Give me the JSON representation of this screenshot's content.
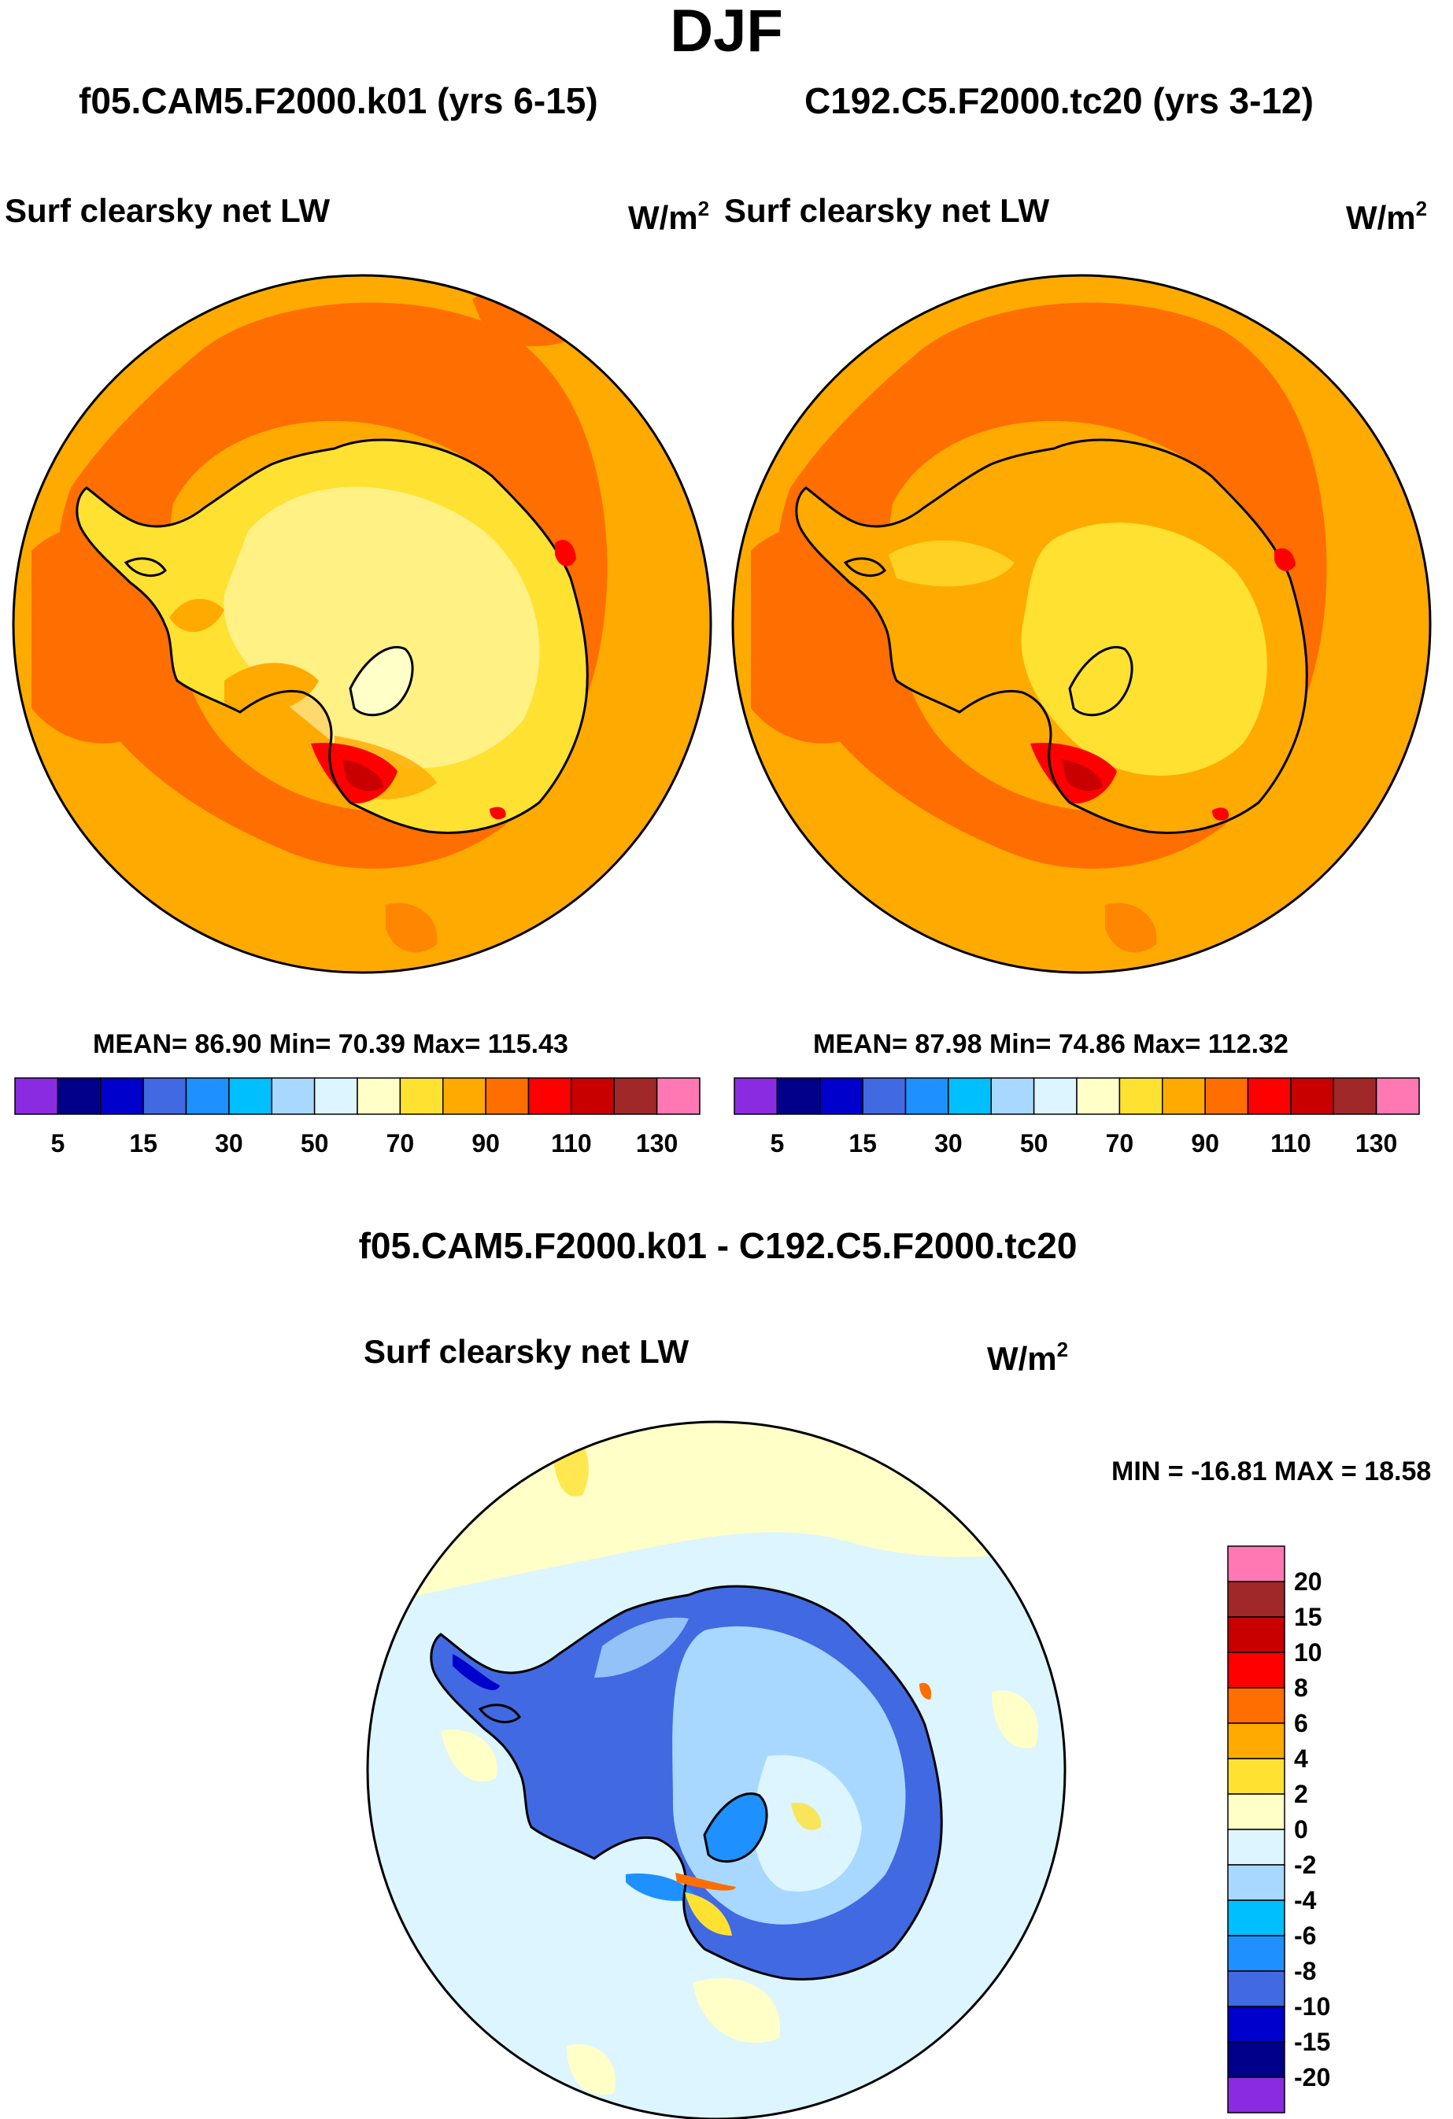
{
  "page_title": "DJF",
  "colors": {
    "palette": [
      "#8a2be2",
      "#00008b",
      "#0000cd",
      "#4169e1",
      "#1e90ff",
      "#00bfff",
      "#a8d8ff",
      "#dcf5ff",
      "#ffffc8",
      "#ffe132",
      "#ffaa00",
      "#ff6e00",
      "#ff0000",
      "#c80000",
      "#a02828",
      "#ff78b4"
    ],
    "land_outline": "#000000",
    "ocean_dominant_left": "#ffaa00",
    "ocean_dominant_diff": "#dcf5ff"
  },
  "panels": [
    {
      "case_title": "f05.CAM5.F2000.k01 (yrs 6-15)",
      "variable": "Surf clearsky net LW",
      "units": "W/m",
      "units_sup": "2",
      "stats": "MEAN=  86.90  Min=  70.39  Max= 115.43"
    },
    {
      "case_title": "C192.C5.F2000.tc20 (yrs 3-12)",
      "variable": "Surf clearsky net LW",
      "units": "W/m",
      "units_sup": "2",
      "stats": "MEAN=  87.98  Min=  74.86  Max= 112.32"
    },
    {
      "case_title": "f05.CAM5.F2000.k01 - C192.C5.F2000.tc20",
      "variable": "Surf clearsky net LW",
      "units": "W/m",
      "units_sup": "2",
      "stats": "MIN = -16.81 MAX =  18.58"
    }
  ],
  "chart_data": [
    {
      "type": "heatmap",
      "projection": "south-polar-stereographic",
      "title": "Surf clearsky net LW",
      "case": "f05.CAM5.F2000.k01 (yrs 6-15)",
      "units": "W/m2",
      "mean": 86.9,
      "min": 70.39,
      "max": 115.43,
      "colorbar": {
        "orientation": "horizontal",
        "levels": [
          5,
          10,
          15,
          20,
          30,
          40,
          50,
          60,
          70,
          80,
          90,
          100,
          110,
          120,
          130
        ],
        "tick_labels": [
          "5",
          "15",
          "30",
          "50",
          "70",
          "90",
          "110",
          "130"
        ]
      }
    },
    {
      "type": "heatmap",
      "projection": "south-polar-stereographic",
      "title": "Surf clearsky net LW",
      "case": "C192.C5.F2000.tc20 (yrs 3-12)",
      "units": "W/m2",
      "mean": 87.98,
      "min": 74.86,
      "max": 112.32,
      "colorbar": {
        "orientation": "horizontal",
        "levels": [
          5,
          10,
          15,
          20,
          30,
          40,
          50,
          60,
          70,
          80,
          90,
          100,
          110,
          120,
          130
        ],
        "tick_labels": [
          "5",
          "15",
          "30",
          "50",
          "70",
          "90",
          "110",
          "130"
        ]
      }
    },
    {
      "type": "heatmap",
      "projection": "south-polar-stereographic",
      "title": "Surf clearsky net LW",
      "case": "f05.CAM5.F2000.k01 - C192.C5.F2000.tc20",
      "units": "W/m2",
      "min": -16.81,
      "max": 18.58,
      "colorbar": {
        "orientation": "vertical",
        "levels": [
          -20,
          -15,
          -10,
          -8,
          -6,
          -4,
          -2,
          0,
          2,
          4,
          6,
          8,
          10,
          15,
          20
        ],
        "tick_labels": [
          "20",
          "15",
          "10",
          "8",
          "6",
          "4",
          "2",
          "0",
          "-2",
          "-4",
          "-6",
          "-8",
          "-10",
          "-15",
          "-20"
        ]
      }
    }
  ]
}
